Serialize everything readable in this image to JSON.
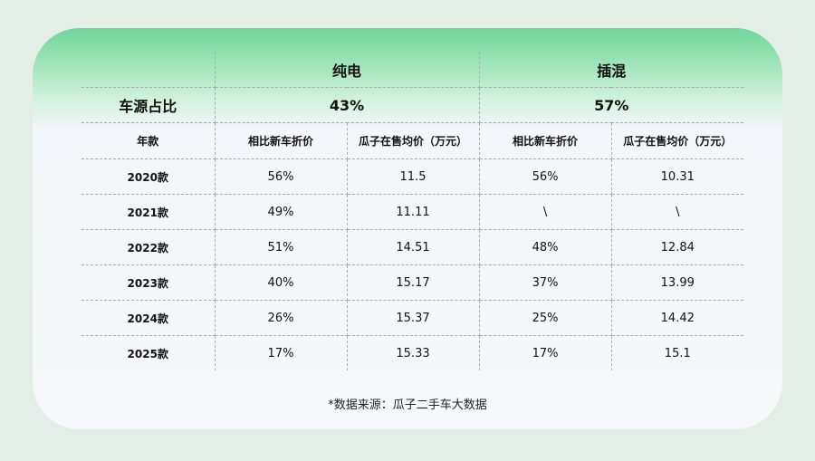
{
  "groups": {
    "left": "纯电",
    "right": "插混"
  },
  "share": {
    "label": "车源占比",
    "left": "43%",
    "right": "57%"
  },
  "columns": {
    "year": "年款",
    "discount": "相比新车折价",
    "price": "瓜子在售均价（万元）"
  },
  "rows": [
    {
      "year": "2020款",
      "ev_discount": "56%",
      "ev_price": "11.5",
      "phev_discount": "56%",
      "phev_price": "10.31"
    },
    {
      "year": "2021款",
      "ev_discount": "49%",
      "ev_price": "11.11",
      "phev_discount": "\\",
      "phev_price": "\\"
    },
    {
      "year": "2022款",
      "ev_discount": "51%",
      "ev_price": "14.51",
      "phev_discount": "48%",
      "phev_price": "12.84"
    },
    {
      "year": "2023款",
      "ev_discount": "40%",
      "ev_price": "15.17",
      "phev_discount": "37%",
      "phev_price": "13.99"
    },
    {
      "year": "2024款",
      "ev_discount": "26%",
      "ev_price": "15.37",
      "phev_discount": "25%",
      "phev_price": "14.42"
    },
    {
      "year": "2025款",
      "ev_discount": "17%",
      "ev_price": "15.33",
      "phev_discount": "17%",
      "phev_price": "15.1"
    }
  ],
  "footnote": "*数据来源：瓜子二手车大数据"
}
